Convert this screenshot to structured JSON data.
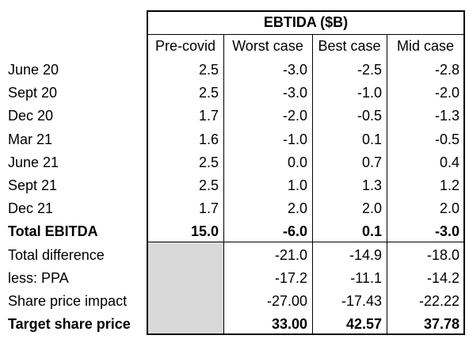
{
  "table": {
    "title": "EBTIDA ($B)",
    "columns": [
      "Pre-covid",
      "Worst case",
      "Best case",
      "Mid case"
    ],
    "rows": [
      {
        "label": "June 20",
        "values": [
          "2.5",
          "-3.0",
          "-2.5",
          "-2.8"
        ],
        "bold": false
      },
      {
        "label": "Sept 20",
        "values": [
          "2.5",
          "-3.0",
          "-1.0",
          "-2.0"
        ],
        "bold": false
      },
      {
        "label": "Dec 20",
        "values": [
          "1.7",
          "-2.0",
          "-0.5",
          "-1.3"
        ],
        "bold": false
      },
      {
        "label": "Mar 21",
        "values": [
          "1.6",
          "-1.0",
          "0.1",
          "-0.5"
        ],
        "bold": false
      },
      {
        "label": "June 21",
        "values": [
          "2.5",
          "0.0",
          "0.7",
          "0.4"
        ],
        "bold": false
      },
      {
        "label": "Sept 21",
        "values": [
          "2.5",
          "1.0",
          "1.3",
          "1.2"
        ],
        "bold": false
      },
      {
        "label": "Dec 21",
        "values": [
          "1.7",
          "2.0",
          "2.0",
          "2.0"
        ],
        "bold": false
      },
      {
        "label": "Total EBITDA",
        "values": [
          "15.0",
          "-6.0",
          "0.1",
          "-3.0"
        ],
        "bold": true
      },
      {
        "label": "Total difference",
        "values": [
          "",
          "-21.0",
          "-14.9",
          "-18.0"
        ],
        "bold": false
      },
      {
        "label": "less: PPA",
        "values": [
          "",
          "-17.2",
          "-11.1",
          "-14.2"
        ],
        "bold": false
      },
      {
        "label": "Share price impact",
        "values": [
          "",
          "-27.00",
          "-17.43",
          "-22.22"
        ],
        "bold": false
      },
      {
        "label": "Target share price",
        "values": [
          "",
          "33.00",
          "42.57",
          "37.78"
        ],
        "bold": true
      }
    ],
    "shaded_color": "#d9d9d9"
  }
}
